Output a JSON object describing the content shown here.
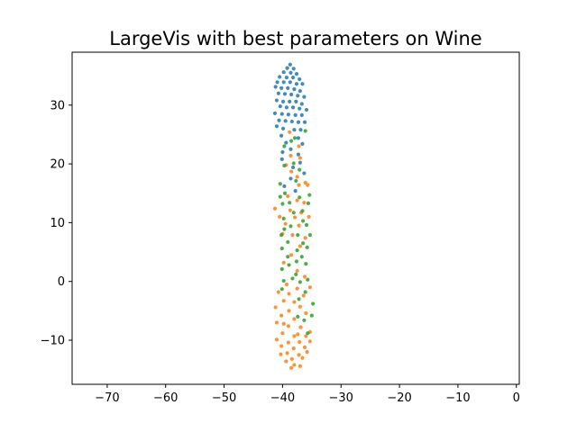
{
  "chart_data": {
    "type": "scatter",
    "title": "LargeVis with best parameters on Wine",
    "xlabel": "",
    "ylabel": "",
    "xlim": [
      -76,
      0.5
    ],
    "ylim": [
      -17.5,
      39
    ],
    "xticks": [
      -70,
      -60,
      -50,
      -40,
      -30,
      -20,
      -10,
      0
    ],
    "xtick_labels": [
      "−70",
      "−60",
      "−50",
      "−40",
      "−30",
      "−20",
      "−10",
      "0"
    ],
    "yticks": [
      -10,
      0,
      10,
      20,
      30
    ],
    "ytick_labels": [
      "−10",
      "0",
      "10",
      "20",
      "30"
    ],
    "grid": false,
    "legend": "none",
    "series": [
      {
        "color": "#1f77b4",
        "points": [
          [
            -38.7,
            36.9
          ],
          [
            -39.2,
            36.3
          ],
          [
            -38.1,
            36.2
          ],
          [
            -39.8,
            35.6
          ],
          [
            -38.6,
            35.5
          ],
          [
            -37.6,
            35.3
          ],
          [
            -40.5,
            34.8
          ],
          [
            -39.3,
            34.7
          ],
          [
            -38.2,
            34.7
          ],
          [
            -37.1,
            34.4
          ],
          [
            -40.9,
            33.9
          ],
          [
            -39.8,
            33.9
          ],
          [
            -38.7,
            33.9
          ],
          [
            -37.6,
            33.6
          ],
          [
            -36.6,
            33.6
          ],
          [
            -41.2,
            33.1
          ],
          [
            -40.2,
            32.9
          ],
          [
            -39.1,
            32.9
          ],
          [
            -38.0,
            32.7
          ],
          [
            -37.0,
            32.4
          ],
          [
            -40.7,
            32.0
          ],
          [
            -39.6,
            31.9
          ],
          [
            -38.5,
            31.8
          ],
          [
            -37.4,
            31.6
          ],
          [
            -36.3,
            31.4
          ],
          [
            -41.0,
            30.8
          ],
          [
            -39.9,
            30.6
          ],
          [
            -38.8,
            30.6
          ],
          [
            -37.7,
            30.6
          ],
          [
            -36.7,
            30.2
          ],
          [
            -40.4,
            29.8
          ],
          [
            -39.3,
            29.6
          ],
          [
            -38.2,
            29.6
          ],
          [
            -37.1,
            29.4
          ],
          [
            -35.9,
            29.2
          ],
          [
            -41.3,
            28.6
          ],
          [
            -40.1,
            28.5
          ],
          [
            -39.0,
            28.4
          ],
          [
            -37.8,
            28.3
          ],
          [
            -36.7,
            28.3
          ],
          [
            -40.6,
            27.4
          ],
          [
            -39.5,
            27.3
          ],
          [
            -38.4,
            27.2
          ],
          [
            -37.3,
            27.1
          ],
          [
            -36.2,
            27.1
          ],
          [
            -41.0,
            26.4
          ],
          [
            -39.9,
            26.0
          ],
          [
            -38.0,
            25.8
          ],
          [
            -36.9,
            25.8
          ],
          [
            -40.2,
            24.8
          ],
          [
            -37.3,
            24.4
          ],
          [
            -39.4,
            23.6
          ],
          [
            -36.6,
            23.4
          ],
          [
            -38.6,
            22.5
          ],
          [
            -40.0,
            22.0
          ],
          [
            -37.3,
            21.6
          ],
          [
            -40.1,
            20.8
          ],
          [
            -37.0,
            20.2
          ],
          [
            -38.2,
            19.4
          ],
          [
            -36.3,
            18.4
          ],
          [
            -38.6,
            17.5
          ],
          [
            -39.7,
            16.2
          ],
          [
            -37.8,
            15.4
          ]
        ]
      },
      {
        "color": "#ff7f0e",
        "points": [
          [
            -38.8,
            25.4
          ],
          [
            -37.2,
            23.0
          ],
          [
            -38.6,
            21.4
          ],
          [
            -37.0,
            21.0
          ],
          [
            -39.4,
            19.8
          ],
          [
            -38.5,
            18.7
          ],
          [
            -37.5,
            17.8
          ],
          [
            -36.1,
            16.8
          ],
          [
            -37.2,
            16.4
          ],
          [
            -35.7,
            16.4
          ],
          [
            -39.1,
            14.5
          ],
          [
            -37.5,
            13.8
          ],
          [
            -36.3,
            13.4
          ],
          [
            -41.3,
            12.4
          ],
          [
            -38.7,
            12.1
          ],
          [
            -36.8,
            11.7
          ],
          [
            -40.5,
            11.0
          ],
          [
            -37.9,
            10.9
          ],
          [
            -35.5,
            11.0
          ],
          [
            -39.5,
            9.8
          ],
          [
            -37.2,
            9.5
          ],
          [
            -40.0,
            8.1
          ],
          [
            -38.3,
            7.9
          ],
          [
            -36.1,
            7.4
          ],
          [
            -37.0,
            6.0
          ],
          [
            -38.5,
            4.5
          ],
          [
            -39.8,
            3.2
          ],
          [
            -37.5,
            1.8
          ],
          [
            -36.2,
            0.8
          ],
          [
            -39.3,
            -0.5
          ],
          [
            -37.5,
            -1.2
          ],
          [
            -35.3,
            -1.0
          ],
          [
            -40.7,
            -1.8
          ],
          [
            -38.9,
            -2.1
          ],
          [
            -36.4,
            -2.4
          ],
          [
            -39.8,
            -3.3
          ],
          [
            -38.0,
            -3.5
          ],
          [
            -41.2,
            -4.4
          ],
          [
            -37.0,
            -4.3
          ],
          [
            -38.9,
            -5.0
          ],
          [
            -36.0,
            -5.4
          ],
          [
            -40.2,
            -5.8
          ],
          [
            -38.0,
            -6.4
          ],
          [
            -41.0,
            -7.0
          ],
          [
            -39.0,
            -7.6
          ],
          [
            -36.9,
            -7.8
          ],
          [
            -35.3,
            -8.6
          ],
          [
            -40.0,
            -8.8
          ],
          [
            -38.0,
            -9.3
          ],
          [
            -36.0,
            -9.3
          ],
          [
            -41.0,
            -9.9
          ],
          [
            -39.0,
            -10.4
          ],
          [
            -37.1,
            -10.3
          ],
          [
            -35.3,
            -10.2
          ],
          [
            -40.2,
            -11.0
          ],
          [
            -38.1,
            -11.4
          ],
          [
            -36.2,
            -11.2
          ],
          [
            -39.2,
            -12.2
          ],
          [
            -37.2,
            -12.5
          ],
          [
            -40.3,
            -12.4
          ],
          [
            -38.4,
            -13.2
          ],
          [
            -36.6,
            -13.0
          ],
          [
            -39.4,
            -13.6
          ],
          [
            -38.0,
            -14.2
          ],
          [
            -37.0,
            -14.4
          ],
          [
            -38.5,
            -14.7
          ],
          [
            -35.8,
            -12.0
          ],
          [
            -39.8,
            -7.2
          ],
          [
            -37.4,
            -9.0
          ]
        ]
      },
      {
        "color": "#2ca02c",
        "points": [
          [
            -36.1,
            25.6
          ],
          [
            -37.9,
            24.4
          ],
          [
            -38.5,
            23.9
          ],
          [
            -39.7,
            23.0
          ],
          [
            -38.1,
            20.1
          ],
          [
            -39.7,
            19.7
          ],
          [
            -37.1,
            19.0
          ],
          [
            -37.7,
            17.1
          ],
          [
            -40.4,
            16.6
          ],
          [
            -39.6,
            15.0
          ],
          [
            -40.4,
            14.4
          ],
          [
            -35.4,
            14.7
          ],
          [
            -37.1,
            14.3
          ],
          [
            -38.8,
            13.4
          ],
          [
            -40.0,
            13.2
          ],
          [
            -35.6,
            13.3
          ],
          [
            -36.6,
            12.0
          ],
          [
            -38.1,
            11.7
          ],
          [
            -39.8,
            10.7
          ],
          [
            -36.5,
            10.3
          ],
          [
            -35.9,
            9.6
          ],
          [
            -38.6,
            9.4
          ],
          [
            -39.7,
            8.9
          ],
          [
            -37.4,
            7.9
          ],
          [
            -40.2,
            7.9
          ],
          [
            -35.3,
            7.9
          ],
          [
            -39.1,
            6.7
          ],
          [
            -36.5,
            6.5
          ],
          [
            -35.8,
            5.8
          ],
          [
            -40.1,
            5.6
          ],
          [
            -37.5,
            5.3
          ],
          [
            -39.1,
            4.2
          ],
          [
            -36.7,
            4.2
          ],
          [
            -36.0,
            3.0
          ],
          [
            -37.6,
            3.4
          ],
          [
            -38.9,
            2.8
          ],
          [
            -40.1,
            2.1
          ],
          [
            -37.7,
            1.2
          ],
          [
            -38.3,
            0.5
          ],
          [
            -39.8,
            0.1
          ],
          [
            -37.0,
            -0.1
          ],
          [
            -35.7,
            0.3
          ],
          [
            -40.1,
            -1.3
          ],
          [
            -36.1,
            -1.8
          ],
          [
            -34.8,
            -3.8
          ],
          [
            -37.2,
            -3.0
          ],
          [
            -35.0,
            -5.8
          ],
          [
            -37.4,
            -6.0
          ],
          [
            -36.3,
            -6.6
          ],
          [
            -35.7,
            -8.8
          ]
        ]
      }
    ]
  }
}
